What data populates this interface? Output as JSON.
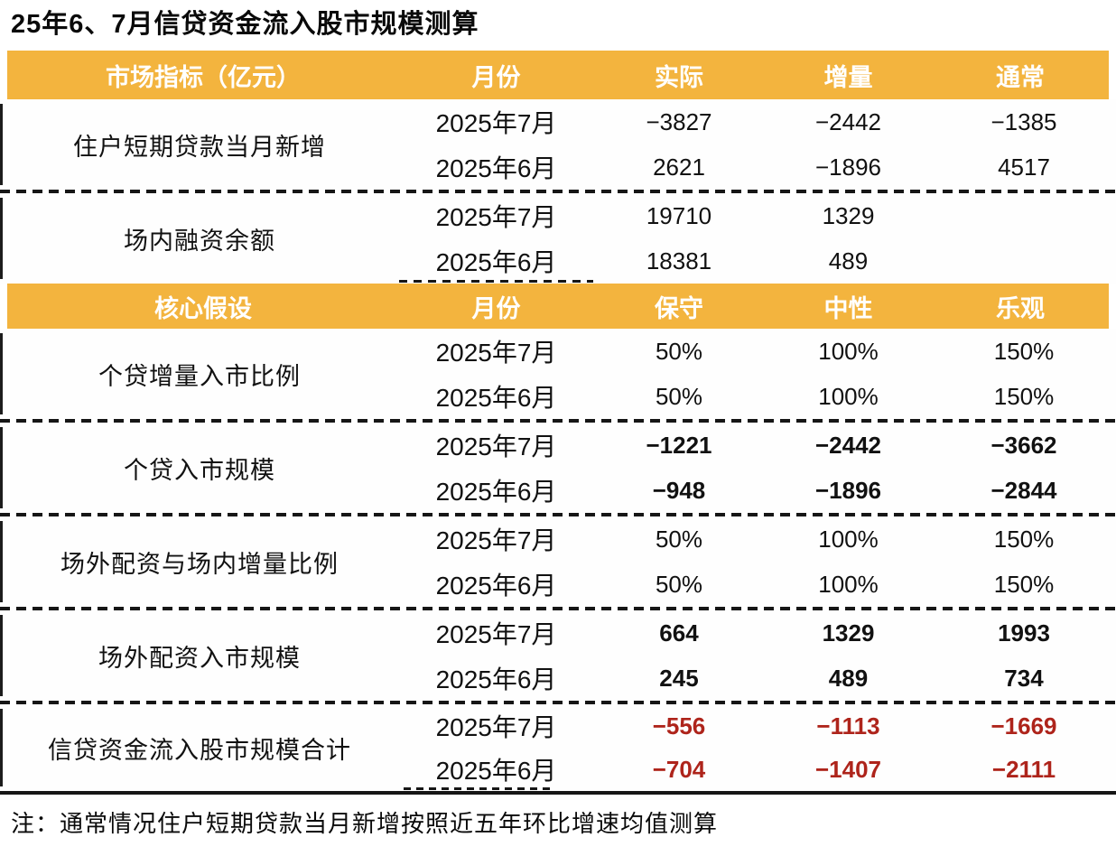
{
  "title": "25年6、7月信贷资金流入股市规模测算",
  "note": "注：通常情况住户短期贷款当月新增按照近五年环比增速均值测算",
  "colors": {
    "header_bg": "#F3B43E",
    "total_red": "#AE241B",
    "text": "#111111"
  },
  "table1": {
    "headers": [
      "市场指标（亿元）",
      "月份",
      "实际",
      "增量",
      "通常"
    ],
    "sections": [
      {
        "label": "住户短期贷款当月新增",
        "rows": [
          {
            "month": "2025年7月",
            "v": [
              "−3827",
              "−2442",
              "−1385"
            ]
          },
          {
            "month": "2025年6月",
            "v": [
              "2621",
              "−1896",
              "4517"
            ]
          }
        ]
      },
      {
        "label": "场内融资余额",
        "rows": [
          {
            "month": "2025年7月",
            "v": [
              "19710",
              "1329",
              ""
            ]
          },
          {
            "month": "2025年6月",
            "v": [
              "18381",
              "489",
              ""
            ]
          }
        ]
      }
    ]
  },
  "table2": {
    "headers": [
      "核心假设",
      "月份",
      "保守",
      "中性",
      "乐观"
    ],
    "sections": [
      {
        "label": "个贷增量入市比例",
        "rows": [
          {
            "month": "2025年7月",
            "v": [
              "50%",
              "100%",
              "150%"
            ]
          },
          {
            "month": "2025年6月",
            "v": [
              "50%",
              "100%",
              "150%"
            ]
          }
        ]
      },
      {
        "label": "个贷入市规模",
        "rows": [
          {
            "month": "2025年7月",
            "v": [
              "−1221",
              "−2442",
              "−3662"
            ]
          },
          {
            "month": "2025年6月",
            "v": [
              "−948",
              "−1896",
              "−2844"
            ]
          }
        ]
      },
      {
        "label": "场外配资与场内增量比例",
        "rows": [
          {
            "month": "2025年7月",
            "v": [
              "50%",
              "100%",
              "150%"
            ]
          },
          {
            "month": "2025年6月",
            "v": [
              "50%",
              "100%",
              "150%"
            ]
          }
        ]
      },
      {
        "label": "场外配资入市规模",
        "rows": [
          {
            "month": "2025年7月",
            "v": [
              "664",
              "1329",
              "1993"
            ]
          },
          {
            "month": "2025年6月",
            "v": [
              "245",
              "489",
              "734"
            ]
          }
        ]
      },
      {
        "label": "信贷资金流入股市规模合计",
        "rows": [
          {
            "month": "2025年7月",
            "v": [
              "−556",
              "−1113",
              "−1669"
            ]
          },
          {
            "month": "2025年6月",
            "v": [
              "−704",
              "−1407",
              "−2111"
            ]
          }
        ]
      }
    ]
  },
  "chart_data": {
    "type": "table",
    "title": "25年6、7月信贷资金流入股市规模测算",
    "unit": "亿元",
    "tables": [
      {
        "columns": [
          "市场指标（亿元）",
          "月份",
          "实际",
          "增量",
          "通常"
        ],
        "rows": [
          [
            "住户短期贷款当月新增",
            "2025年7月",
            -3827,
            -2442,
            -1385
          ],
          [
            "住户短期贷款当月新增",
            "2025年6月",
            2621,
            -1896,
            4517
          ],
          [
            "场内融资余额",
            "2025年7月",
            19710,
            1329,
            null
          ],
          [
            "场内融资余额",
            "2025年6月",
            18381,
            489,
            null
          ]
        ]
      },
      {
        "columns": [
          "核心假设",
          "月份",
          "保守",
          "中性",
          "乐观"
        ],
        "rows": [
          [
            "个贷增量入市比例",
            "2025年7月",
            "50%",
            "100%",
            "150%"
          ],
          [
            "个贷增量入市比例",
            "2025年6月",
            "50%",
            "100%",
            "150%"
          ],
          [
            "个贷入市规模",
            "2025年7月",
            -1221,
            -2442,
            -3662
          ],
          [
            "个贷入市规模",
            "2025年6月",
            -948,
            -1896,
            -2844
          ],
          [
            "场外配资与场内增量比例",
            "2025年7月",
            "50%",
            "100%",
            "150%"
          ],
          [
            "场外配资与场内增量比例",
            "2025年6月",
            "50%",
            "100%",
            "150%"
          ],
          [
            "场外配资入市规模",
            "2025年7月",
            664,
            1329,
            1993
          ],
          [
            "场外配资入市规模",
            "2025年6月",
            245,
            489,
            734
          ],
          [
            "信贷资金流入股市规模合计",
            "2025年7月",
            -556,
            -1113,
            -1669
          ],
          [
            "信贷资金流入股市规模合计",
            "2025年6月",
            -704,
            -1407,
            -2111
          ]
        ]
      }
    ],
    "note": "注：通常情况住户短期贷款当月新增按照近五年环比增速均值测算"
  }
}
